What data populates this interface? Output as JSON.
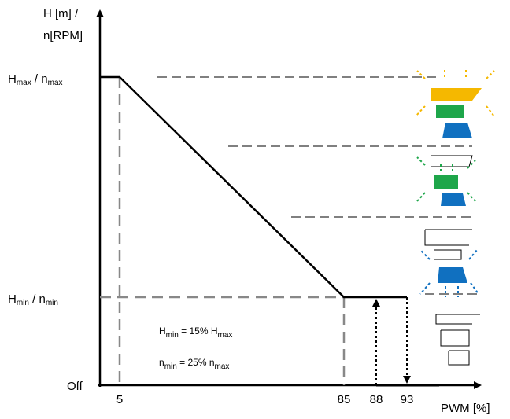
{
  "y_axis_label": [
    "H [m] /",
    "n[RPM]"
  ],
  "x_axis_label": "PWM [%]",
  "y_labels": {
    "max": [
      "H",
      "max",
      " / n",
      "max"
    ],
    "min": [
      "H",
      "min",
      " / n",
      "min"
    ],
    "off": "Off"
  },
  "x_ticks": [
    "5",
    "85",
    "88",
    "93"
  ],
  "annotations": [
    [
      "H",
      "min",
      " = 15% H",
      "max"
    ],
    [
      "n",
      "min",
      " = 25% n",
      "max"
    ]
  ]
}
